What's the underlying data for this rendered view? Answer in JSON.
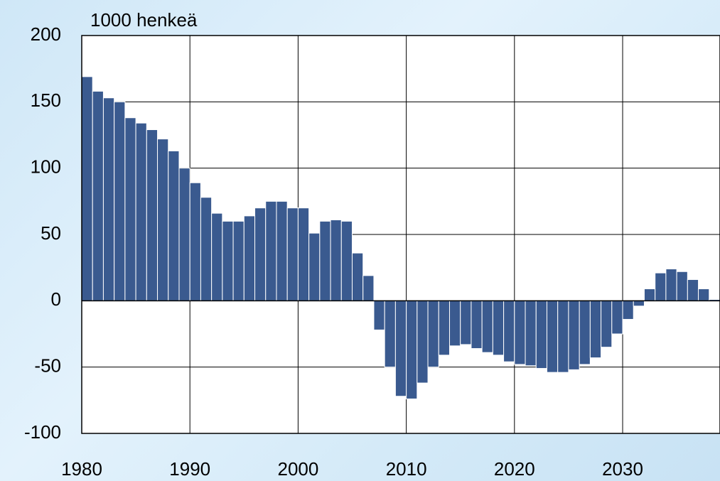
{
  "chart_data": {
    "type": "bar",
    "y_label": "1000 henkeä",
    "x": [
      1980,
      1981,
      1982,
      1983,
      1984,
      1985,
      1986,
      1987,
      1988,
      1989,
      1990,
      1991,
      1992,
      1993,
      1994,
      1995,
      1996,
      1997,
      1998,
      1999,
      2000,
      2001,
      2002,
      2003,
      2004,
      2005,
      2006,
      2007,
      2008,
      2009,
      2010,
      2011,
      2012,
      2013,
      2014,
      2015,
      2016,
      2017,
      2018,
      2019,
      2020,
      2021,
      2022,
      2023,
      2024,
      2025,
      2026,
      2027,
      2028,
      2029,
      2030,
      2031,
      2032,
      2033,
      2034,
      2035,
      2036,
      2037,
      2038
    ],
    "values": [
      169,
      158,
      153,
      150,
      138,
      134,
      129,
      122,
      113,
      100,
      89,
      78,
      66,
      60,
      60,
      64,
      70,
      75,
      75,
      70,
      70,
      51,
      60,
      61,
      60,
      36,
      19,
      -22,
      -50,
      -72,
      -74,
      -62,
      -50,
      -41,
      -34,
      -33,
      -36,
      -39,
      -41,
      -46,
      -48,
      -49,
      -51,
      -54,
      -54,
      -52,
      -48,
      -43,
      -35,
      -25,
      -14,
      -4,
      9,
      21,
      24,
      22,
      16,
      9,
      1
    ],
    "color": "#3a5a8f",
    "xlim": [
      1980,
      2039
    ],
    "xticks": [
      1980,
      1990,
      2000,
      2010,
      2020,
      2030
    ],
    "ylim": [
      -100,
      200
    ],
    "yticks": [
      -100,
      -50,
      0,
      50,
      100,
      150,
      200
    ],
    "grid": true
  }
}
